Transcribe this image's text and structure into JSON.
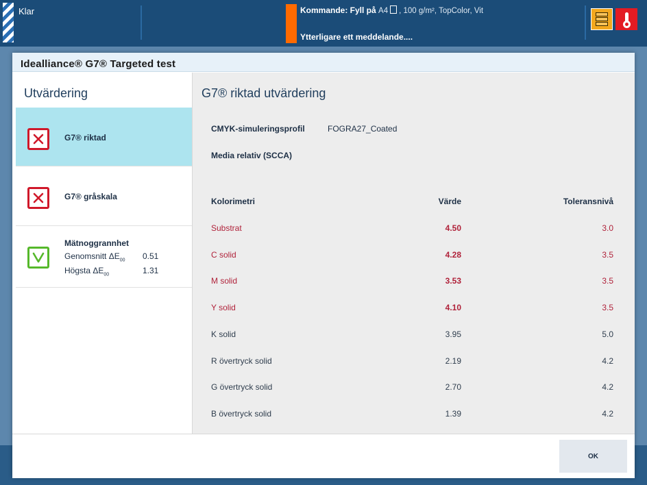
{
  "topbar": {
    "status": "Klar",
    "command_label": "Kommande: Fyll på",
    "command_format": "A4",
    "command_media": ", 100 g/m², TopColor, Vit",
    "more_messages": "Ytterligare ett meddelande....",
    "icons": [
      "machine-status-icon",
      "temperature-warning-icon"
    ],
    "colors": {
      "bar": "#1b4c78",
      "alert": "#ff6a00",
      "temp": "#e31b23",
      "machine": "#f3a81e"
    }
  },
  "dialog": {
    "title": "Idealliance® G7® Targeted test",
    "left": {
      "heading": "Utvärdering",
      "items": [
        {
          "label": "G7® riktad",
          "status": "fail",
          "icon": "fail-x-icon"
        },
        {
          "label": "G7® gråskala",
          "status": "fail",
          "icon": "fail-x-icon"
        },
        {
          "label": "Mätnoggrannhet",
          "status": "pass",
          "icon": "pass-check-icon",
          "metrics": [
            {
              "label": "Genomsnitt ΔE",
              "sub": "00",
              "value": "0.51"
            },
            {
              "label": "Högsta ΔE",
              "sub": "00",
              "value": "1.31"
            }
          ]
        }
      ]
    },
    "right": {
      "heading": "G7® riktad utvärdering",
      "profile_label": "CMYK-simuleringsprofil",
      "profile_value": "FOGRA27_Coated",
      "media_relative": "Media relativ (SCCA)",
      "table": {
        "headers": [
          "Kolorimetri",
          "Värde",
          "Toleransnivå"
        ],
        "rows": [
          {
            "name": "Substrat",
            "value": "4.50",
            "tolerance": "3.0",
            "fail": true
          },
          {
            "name": "C solid",
            "value": "4.28",
            "tolerance": "3.5",
            "fail": true
          },
          {
            "name": "M solid",
            "value": "3.53",
            "tolerance": "3.5",
            "fail": true
          },
          {
            "name": "Y solid",
            "value": "4.10",
            "tolerance": "3.5",
            "fail": true
          },
          {
            "name": "K solid",
            "value": "3.95",
            "tolerance": "5.0",
            "fail": false
          },
          {
            "name": "R övertryck solid",
            "value": "2.19",
            "tolerance": "4.2",
            "fail": false
          },
          {
            "name": "G övertryck solid",
            "value": "2.70",
            "tolerance": "4.2",
            "fail": false
          },
          {
            "name": "B övertryck solid",
            "value": "1.39",
            "tolerance": "4.2",
            "fail": false
          }
        ]
      }
    },
    "ok_label": "OK"
  }
}
